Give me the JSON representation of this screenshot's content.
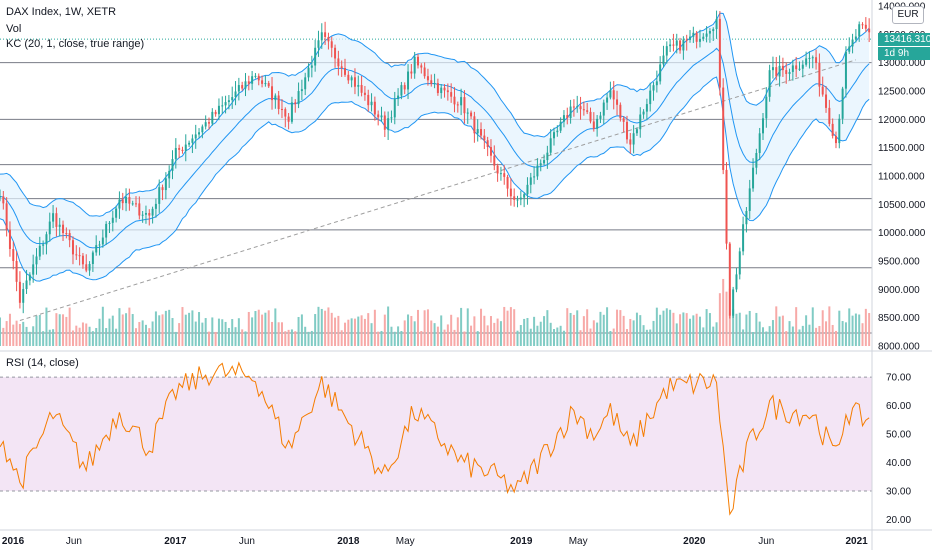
{
  "legend": {
    "main": "DAX Index, 1W, XETR",
    "volume": "Vol",
    "channel": "KC (20, 1, close, true range)",
    "rsi": "RSI (14, close)"
  },
  "currency_button": "EUR",
  "last_price_tag": "13416.310",
  "countdown_tag": "1d 9h",
  "colors": {
    "up": "#26a69a",
    "down": "#ef5350",
    "channel": "#2196f3",
    "channel_fill": "#e3f2fd",
    "rsi_line": "#f57c00",
    "rsi_band": "#f3e5f5",
    "hline": "#787b86",
    "trendline": "#9e9e9e"
  },
  "chart_data": [
    {
      "type": "candlestick",
      "title": "DAX Index, 1W, XETR",
      "ylim": [
        8000,
        14000
      ],
      "y_ticks": [
        "14000.000",
        "13500.000",
        "13000.000",
        "12500.000",
        "12000.000",
        "11500.000",
        "11000.000",
        "10500.000",
        "10000.000",
        "9500.000",
        "9000.000",
        "8500.000",
        "8000.000"
      ],
      "x_ticks": [
        "2016",
        "Jun",
        "2017",
        "Jun",
        "2018",
        "May",
        "2019",
        "May",
        "2020",
        "Jun",
        "2021"
      ],
      "x_tick_dates": [
        "2016-01-01",
        "2016-06-01",
        "2017-01-01",
        "2017-06-01",
        "2018-01-01",
        "2018-05-01",
        "2019-01-01",
        "2019-05-01",
        "2020-01-01",
        "2020-06-01",
        "2021-01-01"
      ],
      "x_range": [
        "2015-12-28",
        "2021-01-10"
      ],
      "horizontal_levels": [
        13000,
        12000,
        11200,
        10600,
        10050,
        9380
      ],
      "trendline": [
        [
          "2016-02-08",
          8450
        ],
        [
          "2020-12-07",
          13050
        ]
      ],
      "price_anchors": [
        [
          "2015-12-28",
          10750
        ],
        [
          "2016-02-08",
          8800
        ],
        [
          "2016-04-18",
          10300
        ],
        [
          "2016-06-27",
          9300
        ],
        [
          "2016-09-05",
          10600
        ],
        [
          "2016-11-07",
          10300
        ],
        [
          "2017-01-02",
          11400
        ],
        [
          "2017-06-19",
          12800
        ],
        [
          "2017-08-28",
          12050
        ],
        [
          "2017-11-06",
          13450
        ],
        [
          "2018-03-19",
          11900
        ],
        [
          "2018-05-21",
          13000
        ],
        [
          "2018-07-16",
          12500
        ],
        [
          "2018-08-27",
          12300
        ],
        [
          "2018-10-29",
          11300
        ],
        [
          "2018-12-24",
          10500
        ],
        [
          "2019-04-22",
          12300
        ],
        [
          "2019-06-03",
          11900
        ],
        [
          "2019-07-08",
          12500
        ],
        [
          "2019-08-19",
          11600
        ],
        [
          "2019-11-04",
          13200
        ],
        [
          "2020-01-13",
          13500
        ],
        [
          "2020-02-17",
          13750
        ],
        [
          "2020-03-16",
          8600
        ],
        [
          "2020-04-20",
          10400
        ],
        [
          "2020-06-08",
          12800
        ],
        [
          "2020-07-20",
          12900
        ],
        [
          "2020-09-07",
          13100
        ],
        [
          "2020-10-26",
          11600
        ],
        [
          "2020-11-16",
          13100
        ],
        [
          "2020-12-14",
          13600
        ],
        [
          "2021-01-04",
          13500
        ]
      ],
      "last_price": 13416.31,
      "keltner": {
        "length": 20,
        "multiplier": 1,
        "source": "close",
        "range": "true range"
      }
    },
    {
      "type": "bar",
      "title": "Vol",
      "series_note": "weekly volume histogram, colored by candle direction",
      "spike_dates": [
        "2020-02-24",
        "2020-03-02",
        "2020-03-09",
        "2020-03-16"
      ]
    },
    {
      "type": "line",
      "title": "RSI (14, close)",
      "ylim": [
        17,
        76
      ],
      "y_ticks": [
        "70.00",
        "60.00",
        "50.00",
        "40.00",
        "30.00",
        "20.00"
      ],
      "band": [
        30,
        70
      ],
      "rsi_anchors": [
        [
          "2015-12-28",
          50
        ],
        [
          "2016-02-08",
          33
        ],
        [
          "2016-04-18",
          57
        ],
        [
          "2016-06-27",
          38
        ],
        [
          "2016-09-05",
          58
        ],
        [
          "2016-11-07",
          45
        ],
        [
          "2017-01-02",
          65
        ],
        [
          "2017-03-20",
          72
        ],
        [
          "2017-06-19",
          70
        ],
        [
          "2017-08-28",
          45
        ],
        [
          "2017-11-06",
          68
        ],
        [
          "2018-03-19",
          35
        ],
        [
          "2018-05-21",
          58
        ],
        [
          "2018-07-16",
          48
        ],
        [
          "2018-08-27",
          40
        ],
        [
          "2018-10-29",
          36
        ],
        [
          "2018-12-24",
          30
        ],
        [
          "2019-04-22",
          58
        ],
        [
          "2019-06-03",
          50
        ],
        [
          "2019-07-08",
          58
        ],
        [
          "2019-08-19",
          45
        ],
        [
          "2019-11-04",
          66
        ],
        [
          "2020-01-13",
          68
        ],
        [
          "2020-02-17",
          68
        ],
        [
          "2020-03-16",
          21
        ],
        [
          "2020-04-20",
          44
        ],
        [
          "2020-06-08",
          60
        ],
        [
          "2020-07-20",
          58
        ],
        [
          "2020-09-07",
          57
        ],
        [
          "2020-10-26",
          42
        ],
        [
          "2020-11-16",
          58
        ],
        [
          "2020-12-14",
          56
        ],
        [
          "2021-01-04",
          55
        ]
      ]
    }
  ]
}
